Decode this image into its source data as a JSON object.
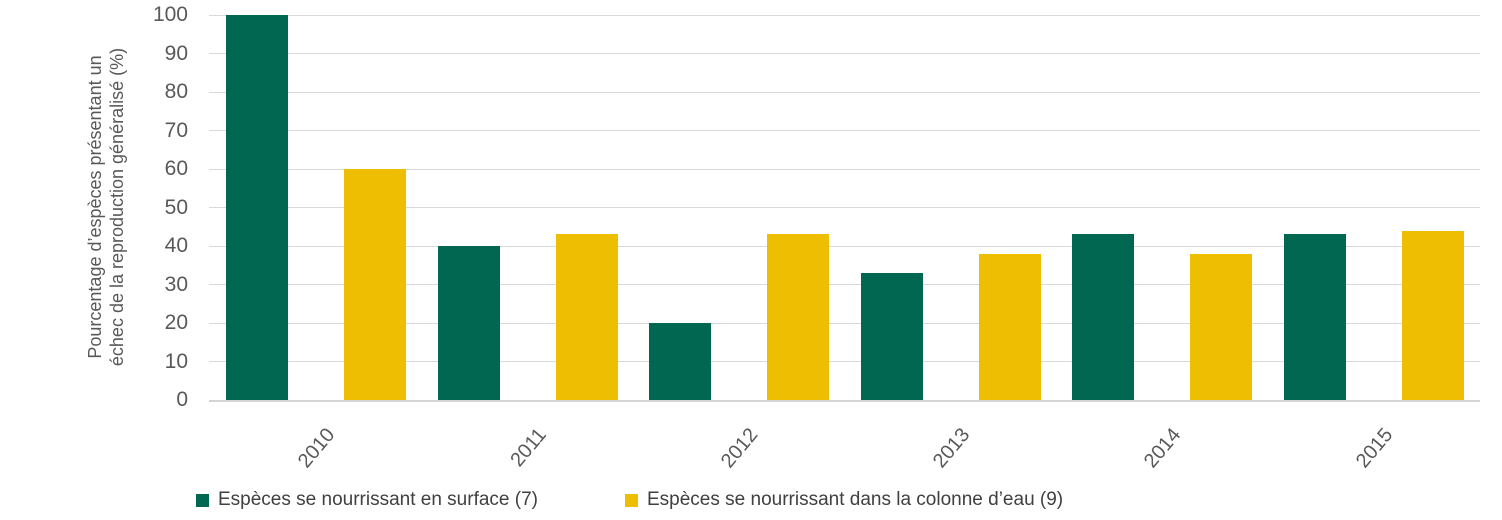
{
  "chart_data": {
    "type": "bar",
    "title": "",
    "categories": [
      "2010",
      "2011",
      "2012",
      "2013",
      "2014",
      "2015"
    ],
    "series": [
      {
        "name": "Espèces se nourrissant en surface (7)",
        "color": "#026750",
        "values": [
          100,
          40,
          20,
          33,
          43,
          43
        ]
      },
      {
        "name": "Espèces se nourrissant dans la colonne d’eau (9)",
        "color": "#EDBE02",
        "values": [
          60,
          43,
          43,
          38,
          38,
          44
        ]
      }
    ],
    "xlabel": "",
    "ylabel": "Pourcentage d’espèces présentant un échec de la reproduction généralisé (%)",
    "ylabel_lines": [
      "Pourcentage d’espèces présentant un",
      "échec de la reproduction généralisé (%)"
    ],
    "ylim": [
      0,
      100
    ],
    "ytick_step": 10,
    "yticks": [
      0,
      10,
      20,
      30,
      40,
      50,
      60,
      70,
      80,
      90,
      100
    ],
    "grid": "horizontal-major",
    "legend_position": "bottom",
    "xtick_rotation_deg": 50
  },
  "colors": {
    "background": "#FFFFFF",
    "gridline": "#D9D9D9",
    "axis_line": "#D4D4D4",
    "axis_text": "#595959",
    "legend_text": "#404040",
    "series_surface_green": "#026750",
    "series_water_column_yellow": "#EDBE02"
  }
}
